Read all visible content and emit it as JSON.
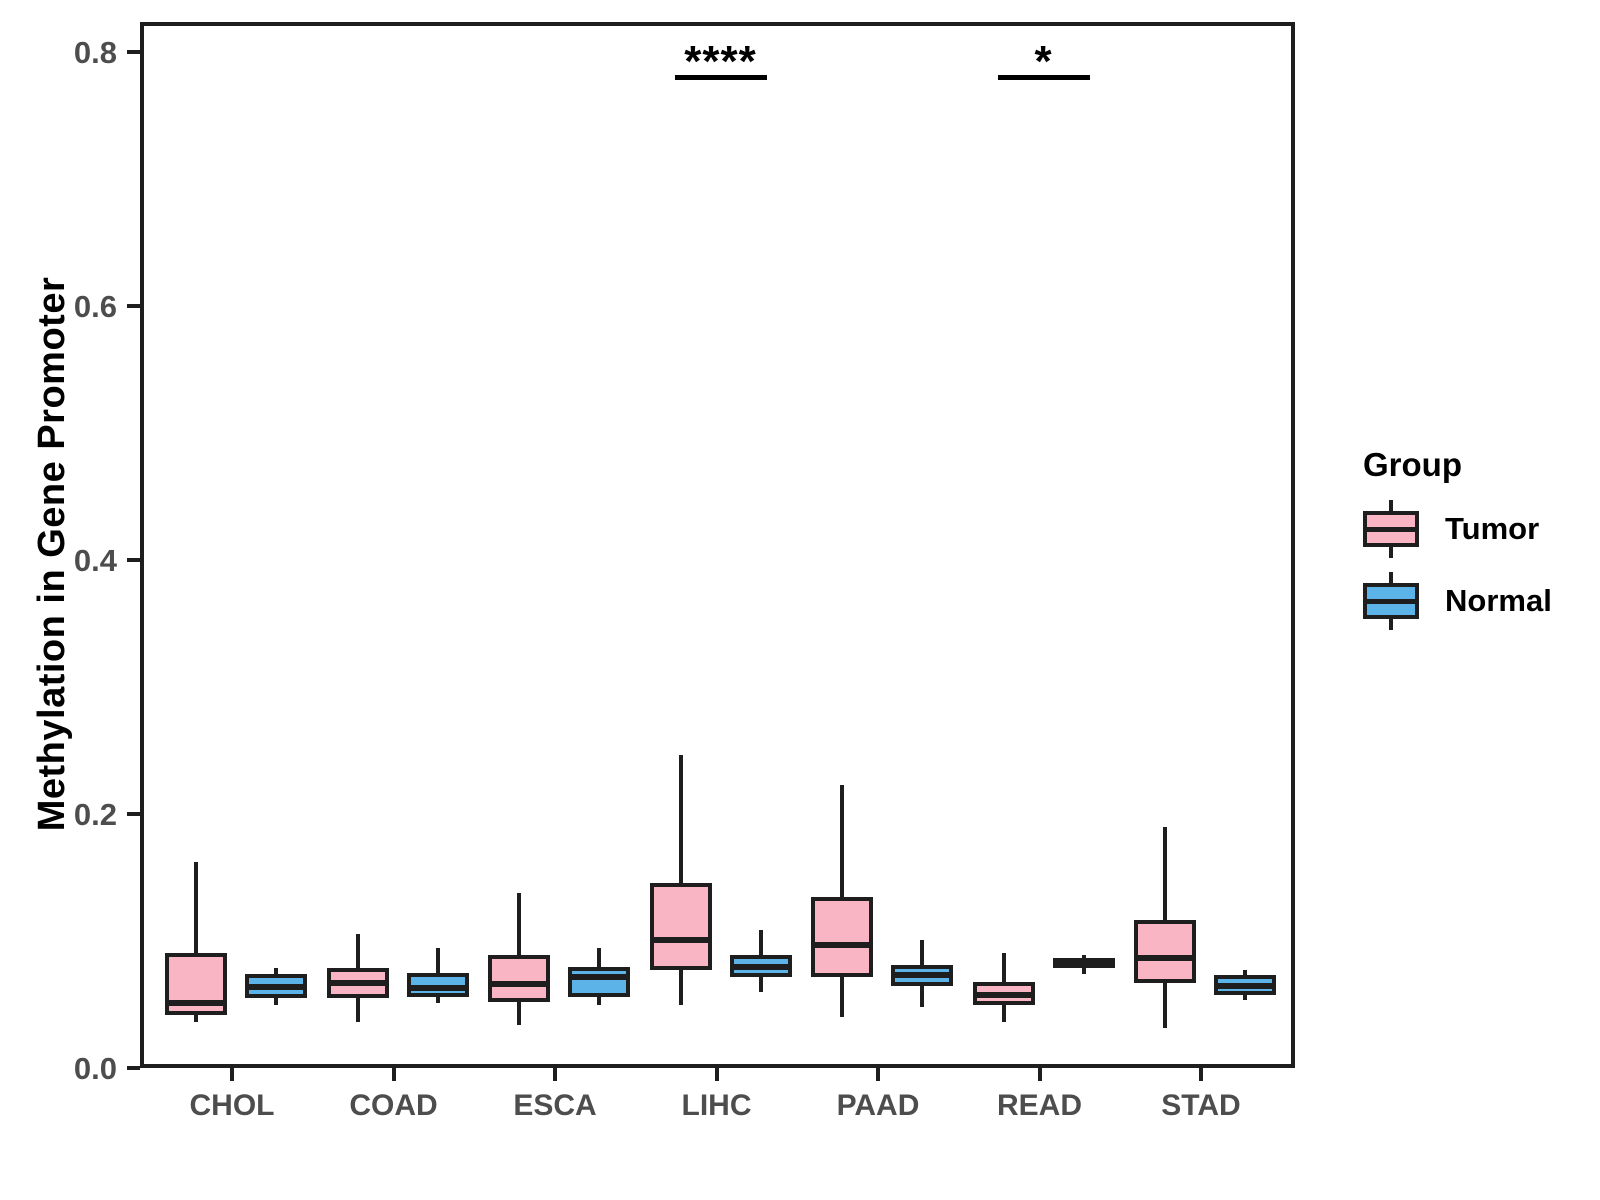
{
  "chart_data": {
    "type": "boxplot",
    "title": "",
    "xlabel": "",
    "ylabel": "Methylation in Gene Promoter",
    "ylim": [
      0.0,
      0.82
    ],
    "yticks": [
      "0.0",
      "0.2",
      "0.4",
      "0.6",
      "0.8"
    ],
    "ytick_values": [
      0.0,
      0.2,
      0.4,
      0.6,
      0.8
    ],
    "grid": "off",
    "categories": [
      "CHOL",
      "COAD",
      "ESCA",
      "LIHC",
      "PAAD",
      "READ",
      "STAD"
    ],
    "groups": [
      {
        "name": "Tumor",
        "color": "#F9B5C4"
      },
      {
        "name": "Normal",
        "color": "#5BB3E8"
      }
    ],
    "series": [
      {
        "category": "CHOL",
        "group": "Tumor",
        "whisker_low": 0.039,
        "q1": 0.045,
        "median": 0.054,
        "q3": 0.094,
        "whisker_high": 0.165
      },
      {
        "category": "CHOL",
        "group": "Normal",
        "whisker_low": 0.053,
        "q1": 0.058,
        "median": 0.067,
        "q3": 0.077,
        "whisker_high": 0.082
      },
      {
        "category": "COAD",
        "group": "Tumor",
        "whisker_low": 0.039,
        "q1": 0.058,
        "median": 0.07,
        "q3": 0.082,
        "whisker_high": 0.109
      },
      {
        "category": "COAD",
        "group": "Normal",
        "whisker_low": 0.054,
        "q1": 0.059,
        "median": 0.066,
        "q3": 0.078,
        "whisker_high": 0.098
      },
      {
        "category": "ESCA",
        "group": "Tumor",
        "whisker_low": 0.037,
        "q1": 0.055,
        "median": 0.069,
        "q3": 0.092,
        "whisker_high": 0.141
      },
      {
        "category": "ESCA",
        "group": "Normal",
        "whisker_low": 0.053,
        "q1": 0.059,
        "median": 0.075,
        "q3": 0.083,
        "whisker_high": 0.098
      },
      {
        "category": "LIHC",
        "group": "Tumor",
        "whisker_low": 0.053,
        "q1": 0.08,
        "median": 0.104,
        "q3": 0.149,
        "whisker_high": 0.25
      },
      {
        "category": "LIHC",
        "group": "Normal",
        "whisker_low": 0.063,
        "q1": 0.075,
        "median": 0.083,
        "q3": 0.092,
        "whisker_high": 0.112
      },
      {
        "category": "PAAD",
        "group": "Tumor",
        "whisker_low": 0.043,
        "q1": 0.075,
        "median": 0.1,
        "q3": 0.138,
        "whisker_high": 0.226
      },
      {
        "category": "PAAD",
        "group": "Normal",
        "whisker_low": 0.051,
        "q1": 0.068,
        "median": 0.076,
        "q3": 0.084,
        "whisker_high": 0.104
      },
      {
        "category": "READ",
        "group": "Tumor",
        "whisker_low": 0.039,
        "q1": 0.053,
        "median": 0.061,
        "q3": 0.071,
        "whisker_high": 0.094
      },
      {
        "category": "READ",
        "group": "Normal",
        "whisker_low": 0.077,
        "q1": 0.082,
        "median": 0.086,
        "q3": 0.09,
        "whisker_high": 0.092
      },
      {
        "category": "STAD",
        "group": "Tumor",
        "whisker_low": 0.035,
        "q1": 0.07,
        "median": 0.09,
        "q3": 0.12,
        "whisker_high": 0.193
      },
      {
        "category": "STAD",
        "group": "Normal",
        "whisker_low": 0.057,
        "q1": 0.061,
        "median": 0.068,
        "q3": 0.076,
        "whisker_high": 0.08
      }
    ],
    "annotations": [
      {
        "label": "****",
        "category": "LIHC"
      },
      {
        "label": "*",
        "category": "READ"
      }
    ],
    "legend": {
      "title": "Group",
      "entries": [
        "Tumor",
        "Normal"
      ],
      "position": "right"
    }
  }
}
